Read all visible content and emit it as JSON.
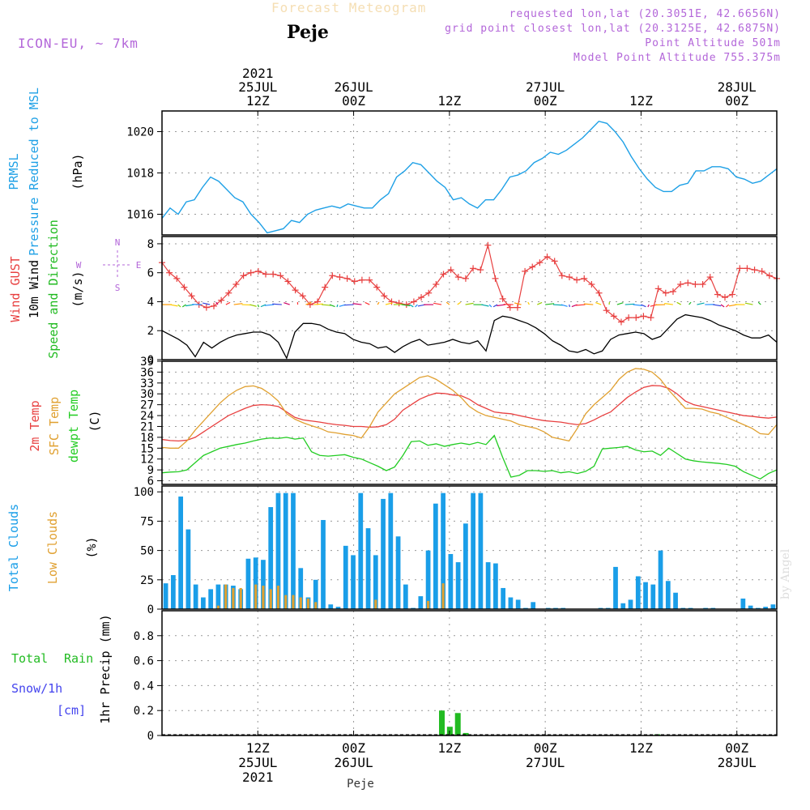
{
  "header": {
    "model": "ICON-EU, ~ 7km",
    "chart_title": "Forecast Meteogram",
    "station": "Peje",
    "requested_pos": "requested lon,lat (20.3051E, 42.6656N)",
    "grid_pos": "grid point closest lon,lat (20.3125E, 42.6875N)",
    "point_altitude": "Point Altitude 501m",
    "model_altitude": "Model Point Altitude 755.375m"
  },
  "watermark": "by Angel",
  "colors": {
    "pressure": "#1ea0e6",
    "gust": "#e84040",
    "wind": "#000000",
    "wind_dir": "#22bb22",
    "temp2m": "#e84040",
    "sfctemp": "#e0a030",
    "dewpt": "#22cc22",
    "total_cloud": "#1a9ee8",
    "low_cloud": "#e0a030",
    "rain": "#22bb22",
    "snow": "#4444ee",
    "compass": "#b366d9"
  },
  "chart_data": {
    "type": "line",
    "time_axis": {
      "start_hour": 0,
      "end_hour": 77,
      "top_labels": [
        {
          "hour": 12,
          "lines": [
            "2021",
            "25JUL",
            "12Z"
          ]
        },
        {
          "hour": 24,
          "lines": [
            "26JUL",
            "00Z"
          ]
        },
        {
          "hour": 36,
          "lines": [
            "12Z"
          ]
        },
        {
          "hour": 48,
          "lines": [
            "27JUL",
            "00Z"
          ]
        },
        {
          "hour": 60,
          "lines": [
            "12Z"
          ]
        },
        {
          "hour": 72,
          "lines": [
            "28JUL",
            "00Z"
          ]
        }
      ],
      "bottom_labels": [
        {
          "hour": 12,
          "lines": [
            "12Z",
            "25JUL",
            "2021"
          ]
        },
        {
          "hour": 24,
          "lines": [
            "00Z",
            "26JUL"
          ]
        },
        {
          "hour": 36,
          "lines": [
            "12Z"
          ]
        },
        {
          "hour": 48,
          "lines": [
            "00Z",
            "27JUL"
          ]
        },
        {
          "hour": 60,
          "lines": [
            "12Z"
          ]
        },
        {
          "hour": 72,
          "lines": [
            "00Z",
            "28JUL"
          ]
        }
      ],
      "footer": "Peje"
    },
    "panels": [
      {
        "name": "pressure",
        "labels": [
          {
            "text": "PRMSL",
            "color": "#1ea0e6"
          },
          {
            "text": "Pressure Reduced to MSL",
            "color": "#1ea0e6"
          },
          {
            "text": "(hPa)",
            "color": "#000000"
          }
        ],
        "ylim": [
          1015,
          1021
        ],
        "yticks": [
          1016,
          1018,
          1020
        ],
        "series": [
          {
            "name": "PRMSL",
            "values": [
              1015.8,
              1016.3,
              1016.0,
              1016.6,
              1016.7,
              1017.3,
              1017.8,
              1017.6,
              1017.2,
              1016.8,
              1016.6,
              1016.0,
              1015.6,
              1015.1,
              1015.2,
              1015.3,
              1015.7,
              1015.6,
              1016.0,
              1016.2,
              1016.3,
              1016.4,
              1016.3,
              1016.5,
              1016.4,
              1016.3,
              1016.3,
              1016.7,
              1017.0,
              1017.8,
              1018.1,
              1018.5,
              1018.4,
              1018.0,
              1017.6,
              1017.3,
              1016.7,
              1016.8,
              1016.5,
              1016.3,
              1016.7,
              1016.7,
              1017.2,
              1017.8,
              1017.9,
              1018.1,
              1018.5,
              1018.7,
              1019.0,
              1018.9,
              1019.1,
              1019.4,
              1019.7,
              1020.1,
              1020.5,
              1020.4,
              1020.0,
              1019.5,
              1018.8,
              1018.2,
              1017.7,
              1017.3,
              1017.1,
              1017.1,
              1017.4,
              1017.5,
              1018.1,
              1018.1,
              1018.3,
              1018.3,
              1018.2,
              1017.8,
              1017.7,
              1017.5,
              1017.6,
              1017.9,
              1018.2
            ]
          }
        ]
      },
      {
        "name": "wind",
        "labels": [
          {
            "text": "Wind GUST",
            "color": "#e84040"
          },
          {
            "text": "10m Wind",
            "color": "#000000"
          },
          {
            "text": "Speed and Direction",
            "color": "#22bb22"
          },
          {
            "text": "(m/s)",
            "color": "#000000"
          }
        ],
        "compass": {
          "n": "N",
          "s": "S",
          "e": "E",
          "w": "W"
        },
        "ylim": [
          0,
          8.5
        ],
        "yticks": [
          0,
          2,
          4,
          6,
          8
        ],
        "series": [
          {
            "name": "gust",
            "values": [
              6.7,
              6.0,
              5.6,
              5.0,
              4.4,
              3.8,
              3.6,
              3.7,
              4.1,
              4.6,
              5.2,
              5.8,
              6.0,
              6.1,
              5.9,
              5.9,
              5.8,
              5.4,
              4.8,
              4.4,
              3.8,
              4.0,
              5.0,
              5.8,
              5.7,
              5.6,
              5.4,
              5.5,
              5.5,
              5.0,
              4.4,
              4.0,
              3.9,
              3.8,
              4.0,
              4.3,
              4.6,
              5.2,
              5.9,
              6.2,
              5.7,
              5.6,
              6.3,
              6.2,
              7.9,
              5.6,
              4.2,
              3.6,
              3.6,
              6.1,
              6.4,
              6.7,
              7.1,
              6.8,
              5.8,
              5.7,
              5.5,
              5.6,
              5.2,
              4.6,
              3.4,
              3.0,
              2.6,
              2.9,
              2.9,
              3.0,
              2.9,
              4.9,
              4.6,
              4.7,
              5.2,
              5.3,
              5.2,
              5.2,
              5.7,
              4.5,
              4.3,
              4.5,
              6.3,
              6.3,
              6.2,
              6.1,
              5.8,
              5.6
            ]
          },
          {
            "name": "wind10m",
            "values": [
              2.0,
              1.7,
              1.4,
              1.0,
              0.2,
              1.2,
              0.8,
              1.2,
              1.5,
              1.7,
              1.8,
              1.9,
              1.9,
              1.7,
              1.2,
              0.1,
              1.9,
              2.5,
              2.5,
              2.4,
              2.1,
              1.9,
              1.8,
              1.4,
              1.2,
              1.1,
              0.8,
              0.9,
              0.5,
              0.9,
              1.2,
              1.4,
              1.0,
              1.1,
              1.2,
              1.4,
              1.2,
              1.1,
              1.3,
              0.6,
              2.7,
              3.0,
              2.9,
              2.7,
              2.5,
              2.2,
              1.8,
              1.3,
              1.0,
              0.6,
              0.5,
              0.7,
              0.4,
              0.6,
              1.4,
              1.7,
              1.8,
              1.9,
              1.8,
              1.4,
              1.6,
              2.2,
              2.8,
              3.1,
              3.0,
              2.9,
              2.7,
              2.4,
              2.2,
              2.0,
              1.7,
              1.5,
              1.5,
              1.7,
              1.2
            ]
          }
        ]
      },
      {
        "name": "temperature",
        "labels": [
          {
            "text": "2m Temp",
            "color": "#e84040"
          },
          {
            "text": "SFC Temp",
            "color": "#e0a030"
          },
          {
            "text": "dewpt Temp",
            "color": "#22cc22"
          },
          {
            "text": "(C)",
            "color": "#000000"
          }
        ],
        "ylim": [
          5,
          39
        ],
        "yticks": [
          6,
          9,
          12,
          15,
          18,
          21,
          24,
          27,
          30,
          33,
          36,
          39
        ],
        "series": [
          {
            "name": "2m Temp",
            "values": [
              17.4,
              17.1,
              17.0,
              17.2,
              18.0,
              19.5,
              21.0,
              22.5,
              24.0,
              25.0,
              26.0,
              26.8,
              27.0,
              26.9,
              26.5,
              25.0,
              23.5,
              22.8,
              22.5,
              22.2,
              21.8,
              21.5,
              21.3,
              21.0,
              21.0,
              20.8,
              20.9,
              21.5,
              23.0,
              25.5,
              27.0,
              28.5,
              29.5,
              30.2,
              30.1,
              29.7,
              29.5,
              28.5,
              27.0,
              26.0,
              25.0,
              24.7,
              24.5,
              24.0,
              23.5,
              23.0,
              22.6,
              22.4,
              22.2,
              21.8,
              21.5,
              21.8,
              22.8,
              24.0,
              25.0,
              27.0,
              29.0,
              30.5,
              31.8,
              32.3,
              32.2,
              31.5,
              30.0,
              28.0,
              27.0,
              26.5,
              26.0,
              25.5,
              25.0,
              24.5,
              24.0,
              23.8,
              23.5,
              23.3,
              23.6
            ]
          },
          {
            "name": "SFC Temp",
            "values": [
              15.2,
              15.0,
              15.0,
              17.0,
              20.0,
              22.5,
              25.0,
              27.5,
              29.5,
              31.0,
              32.0,
              32.2,
              31.5,
              30.0,
              28.0,
              24.5,
              23.0,
              22.0,
              21.2,
              20.5,
              19.5,
              19.2,
              18.8,
              18.5,
              17.8,
              21.0,
              25.0,
              27.5,
              30.0,
              31.5,
              33.0,
              34.5,
              35.0,
              34.0,
              32.5,
              31.0,
              29.0,
              26.5,
              25.0,
              24.0,
              23.5,
              23.0,
              22.5,
              21.5,
              21.0,
              20.5,
              19.5,
              18.0,
              17.5,
              17.0,
              20.5,
              24.5,
              27.0,
              29.0,
              31.0,
              34.0,
              36.0,
              37.0,
              36.8,
              36.0,
              34.0,
              31.0,
              28.5,
              26.0,
              26.0,
              25.8,
              25.0,
              24.5,
              23.5,
              22.5,
              21.5,
              20.5,
              19.0,
              18.8,
              21.5
            ]
          },
          {
            "name": "dewpt Temp",
            "values": [
              8.2,
              8.4,
              8.5,
              9.0,
              11.0,
              13.0,
              14.0,
              15.0,
              15.5,
              16.0,
              16.4,
              17.0,
              17.5,
              17.8,
              17.7,
              18.0,
              17.5,
              17.8,
              14.0,
              13.0,
              12.8,
              13.0,
              13.2,
              12.5,
              12.0,
              11.0,
              10.0,
              8.8,
              9.8,
              13.0,
              16.8,
              17.0,
              15.8,
              16.2,
              15.5,
              16.0,
              16.4,
              16.0,
              16.6,
              16.0,
              18.5,
              12.5,
              7.0,
              7.5,
              8.8,
              8.8,
              8.6,
              8.8,
              8.2,
              8.5,
              8.0,
              8.6,
              10.0,
              14.8,
              15.0,
              15.2,
              15.5,
              14.5,
              14.0,
              14.2,
              13.0,
              15.0,
              13.5,
              12.0,
              11.5,
              11.2,
              11.0,
              10.8,
              10.5,
              10.0,
              8.5,
              7.5,
              6.5,
              8.0,
              9.0
            ]
          }
        ]
      },
      {
        "name": "clouds",
        "type": "bar",
        "labels": [
          {
            "text": "Total Clouds",
            "color": "#1a9ee8"
          },
          {
            "text": "Low Clouds",
            "color": "#e0a030"
          },
          {
            "text": "(%)",
            "color": "#000000"
          }
        ],
        "ylim": [
          0,
          105
        ],
        "yticks": [
          0,
          25,
          50,
          75,
          100
        ],
        "series": [
          {
            "name": "Total Clouds",
            "values": [
              22,
              29,
              96,
              68,
              21,
              10,
              17,
              21,
              21,
              20,
              17,
              43,
              44,
              42,
              87,
              99,
              99,
              99,
              35,
              10,
              25,
              76,
              4,
              2,
              54,
              46,
              99,
              69,
              46,
              94,
              99,
              62,
              21,
              1,
              11,
              50,
              90,
              99,
              47,
              40,
              73,
              99,
              99,
              40,
              39,
              18,
              10,
              8,
              1,
              6,
              0,
              1,
              1,
              1,
              0,
              0,
              0,
              0,
              1,
              1,
              36,
              5,
              8,
              28,
              23,
              21,
              50,
              24,
              14,
              1,
              1,
              0,
              1,
              1,
              0,
              0,
              0,
              9,
              3,
              1,
              2,
              4
            ]
          },
          {
            "name": "Low Clouds",
            "values": [
              0,
              0,
              0,
              0,
              0,
              0,
              0,
              3,
              21,
              18,
              18,
              0,
              21,
              20,
              17,
              20,
              12,
              12,
              10,
              9,
              6,
              0,
              0,
              0,
              0,
              0,
              0,
              0,
              8,
              0,
              0,
              0,
              0,
              0,
              0,
              7,
              0,
              22,
              0,
              0,
              0,
              0,
              0,
              0,
              0,
              0,
              0,
              0,
              0,
              0,
              0,
              0,
              0,
              0,
              0,
              0,
              0,
              0,
              0,
              0,
              0,
              0,
              0,
              0,
              0,
              0,
              0,
              0,
              0,
              0,
              0,
              0,
              0,
              0,
              0,
              0,
              0,
              0,
              0,
              0,
              0,
              0
            ]
          }
        ]
      },
      {
        "name": "precip",
        "type": "bar",
        "labels": [
          {
            "text": "Total",
            "color": "#22bb22"
          },
          {
            "text": "Rain",
            "color": "#22bb22"
          },
          {
            "text": "Snow/1h",
            "color": "#4444ee"
          },
          {
            "text": "[cm]",
            "color": "#4444ee"
          },
          {
            "text": "1hr Precip (mm)",
            "color": "#000000"
          }
        ],
        "ylim": [
          0,
          1.0
        ],
        "yticks": [
          0,
          0.2,
          0.4,
          0.6,
          0.8
        ],
        "ytick_labels": [
          "0",
          "0.2",
          "0.4",
          "0.6",
          "0.8"
        ],
        "series": [
          {
            "name": "Total Rain",
            "points": [
              {
                "hour": 35,
                "value": 0.2
              },
              {
                "hour": 36,
                "value": 0.07
              },
              {
                "hour": 37,
                "value": 0.18
              },
              {
                "hour": 38,
                "value": 0.02
              },
              {
                "hour": 62,
                "value": 0.01
              }
            ]
          }
        ]
      }
    ]
  }
}
